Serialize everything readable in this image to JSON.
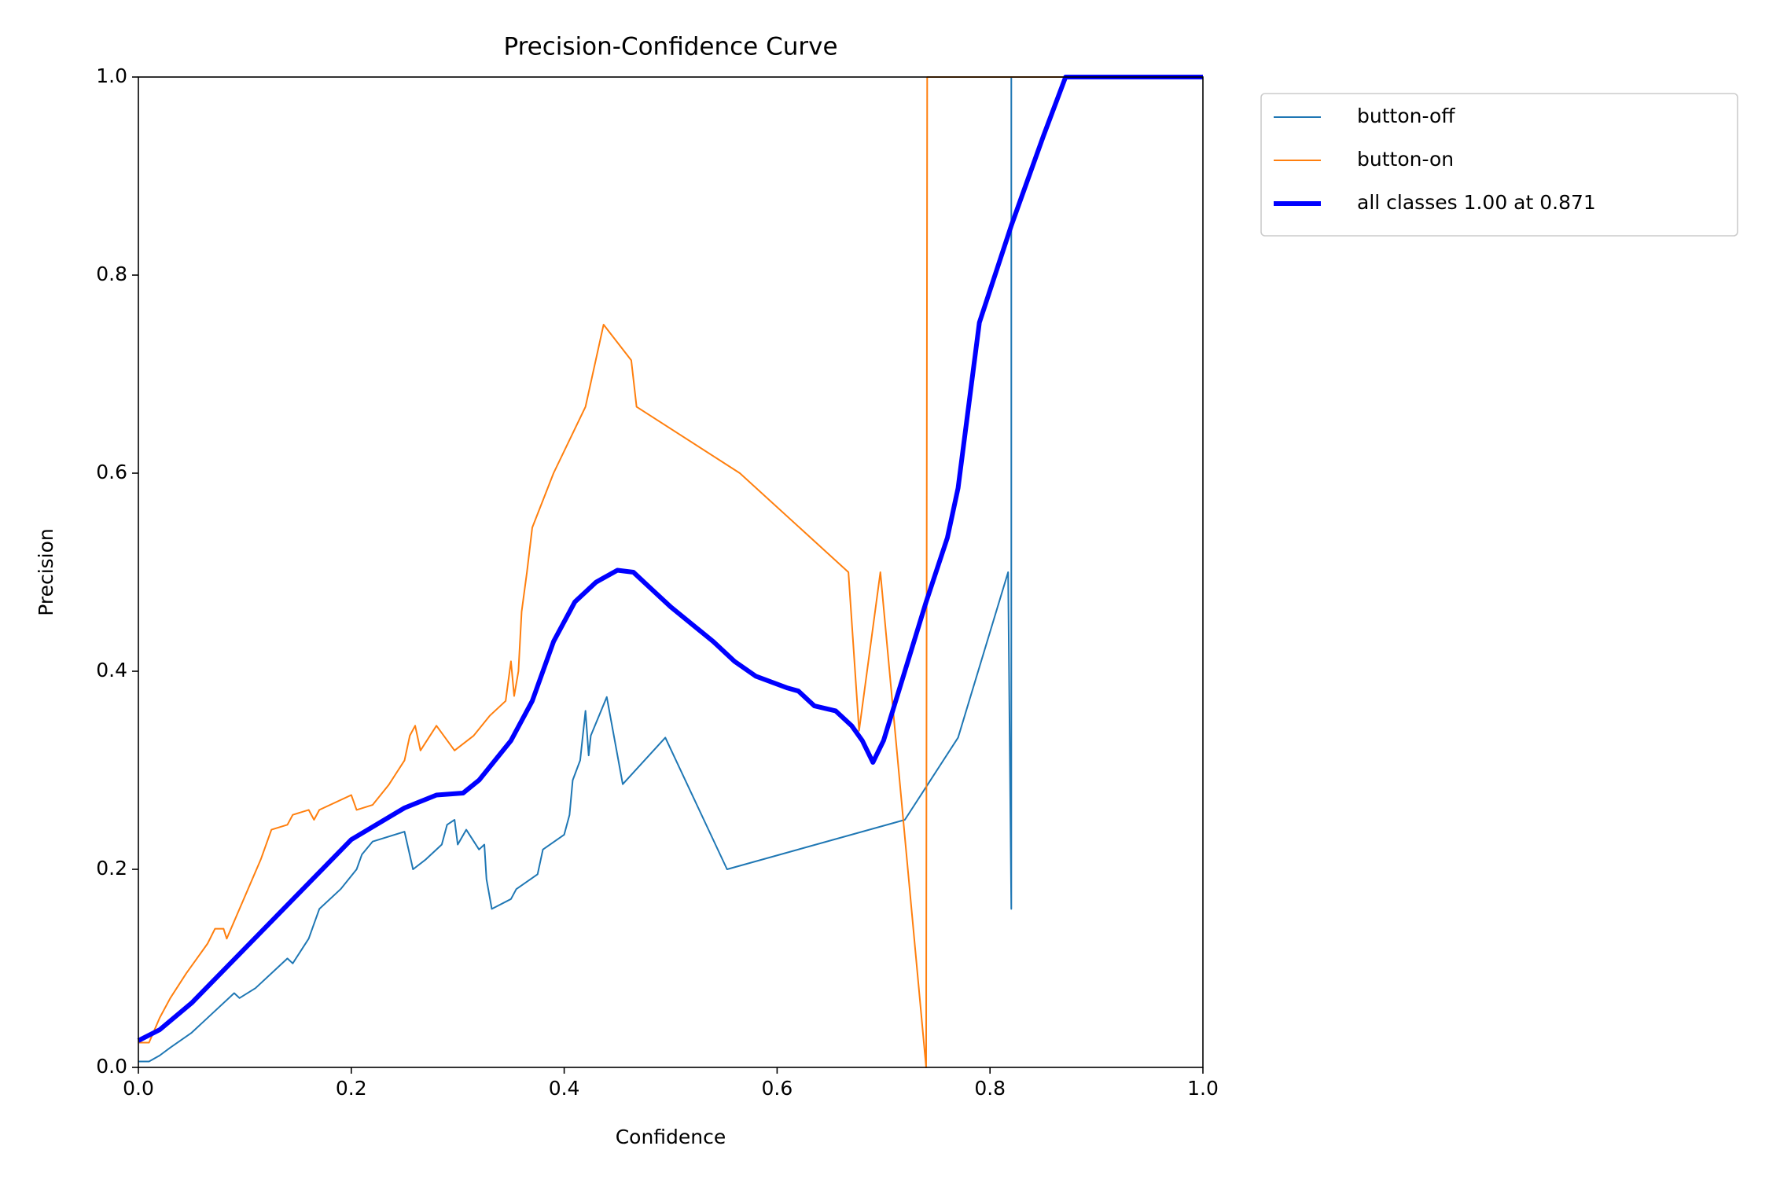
{
  "chart_data": {
    "type": "line",
    "title": "Precision-Confidence Curve",
    "xlabel": "Confidence",
    "ylabel": "Precision",
    "xlim": [
      0,
      1
    ],
    "ylim": [
      0,
      1
    ],
    "xticks": [
      {
        "value": 0,
        "label": "0.0"
      },
      0.2,
      0.4,
      0.6,
      0.8,
      {
        "value": 1,
        "label": "1.0"
      }
    ],
    "yticks": [
      {
        "value": 0,
        "label": "0.0"
      },
      0.2,
      0.4,
      0.6,
      0.8,
      {
        "value": 1,
        "label": "1.0"
      }
    ],
    "legend": "outside upper right",
    "series": [
      {
        "name": "button-off",
        "color": "#1f77b4",
        "linewidth": 2,
        "x": [
          0,
          0.01,
          0.02,
          0.03,
          0.05,
          0.07,
          0.09,
          0.095,
          0.11,
          0.13,
          0.14,
          0.145,
          0.16,
          0.17,
          0.19,
          0.205,
          0.21,
          0.22,
          0.25,
          0.258,
          0.27,
          0.285,
          0.29,
          0.297,
          0.3,
          0.308,
          0.32,
          0.325,
          0.327,
          0.332,
          0.35,
          0.355,
          0.375,
          0.38,
          0.4,
          0.405,
          0.408,
          0.415,
          0.42,
          0.423,
          0.425,
          0.44,
          0.455,
          0.495,
          0.553,
          0.72,
          0.77,
          0.817,
          0.82,
          0.82,
          1.0
        ],
        "values": [
          0.006,
          0.006,
          0.012,
          0.02,
          0.035,
          0.055,
          0.075,
          0.07,
          0.08,
          0.1,
          0.11,
          0.105,
          0.13,
          0.16,
          0.18,
          0.2,
          0.215,
          0.228,
          0.238,
          0.2,
          0.21,
          0.225,
          0.245,
          0.25,
          0.225,
          0.24,
          0.22,
          0.225,
          0.19,
          0.16,
          0.17,
          0.18,
          0.195,
          0.22,
          0.235,
          0.255,
          0.29,
          0.31,
          0.36,
          0.315,
          0.335,
          0.374,
          0.286,
          0.333,
          0.2,
          0.25,
          0.333,
          0.5,
          0.16,
          1.0,
          1.0
        ]
      },
      {
        "name": "button-on",
        "color": "#ff7f0e",
        "linewidth": 2,
        "x": [
          0,
          0.01,
          0.02,
          0.03,
          0.045,
          0.055,
          0.065,
          0.072,
          0.08,
          0.083,
          0.095,
          0.105,
          0.115,
          0.125,
          0.14,
          0.145,
          0.16,
          0.165,
          0.17,
          0.2,
          0.205,
          0.22,
          0.235,
          0.25,
          0.255,
          0.26,
          0.265,
          0.28,
          0.297,
          0.315,
          0.33,
          0.345,
          0.35,
          0.353,
          0.357,
          0.36,
          0.365,
          0.37,
          0.39,
          0.42,
          0.437,
          0.463,
          0.468,
          0.565,
          0.667,
          0.677,
          0.697,
          0.74,
          0.741,
          1.0
        ],
        "values": [
          0.025,
          0.025,
          0.05,
          0.07,
          0.095,
          0.11,
          0.125,
          0.14,
          0.14,
          0.13,
          0.16,
          0.185,
          0.21,
          0.24,
          0.245,
          0.255,
          0.26,
          0.25,
          0.26,
          0.275,
          0.26,
          0.265,
          0.285,
          0.31,
          0.335,
          0.345,
          0.32,
          0.345,
          0.32,
          0.335,
          0.355,
          0.37,
          0.41,
          0.375,
          0.4,
          0.46,
          0.5,
          0.545,
          0.6,
          0.667,
          0.75,
          0.714,
          0.667,
          0.6,
          0.5,
          0.34,
          0.5,
          0.0,
          1.0,
          1.0
        ]
      },
      {
        "name": "all classes 1.00 at 0.871",
        "color": "#0000ff",
        "linewidth": 6,
        "x": [
          0,
          0.02,
          0.05,
          0.1,
          0.15,
          0.2,
          0.25,
          0.28,
          0.305,
          0.32,
          0.35,
          0.37,
          0.39,
          0.41,
          0.43,
          0.45,
          0.465,
          0.48,
          0.5,
          0.54,
          0.56,
          0.58,
          0.61,
          0.62,
          0.635,
          0.655,
          0.67,
          0.68,
          0.69,
          0.7,
          0.72,
          0.74,
          0.76,
          0.77,
          0.79,
          0.82,
          0.85,
          0.871,
          1.0
        ],
        "values": [
          0.027,
          0.038,
          0.065,
          0.12,
          0.175,
          0.23,
          0.262,
          0.275,
          0.277,
          0.29,
          0.33,
          0.37,
          0.43,
          0.47,
          0.49,
          0.502,
          0.5,
          0.485,
          0.465,
          0.43,
          0.41,
          0.395,
          0.383,
          0.38,
          0.365,
          0.36,
          0.345,
          0.33,
          0.308,
          0.33,
          0.4,
          0.47,
          0.535,
          0.585,
          0.752,
          0.85,
          0.94,
          1.0,
          1.0
        ]
      }
    ]
  }
}
